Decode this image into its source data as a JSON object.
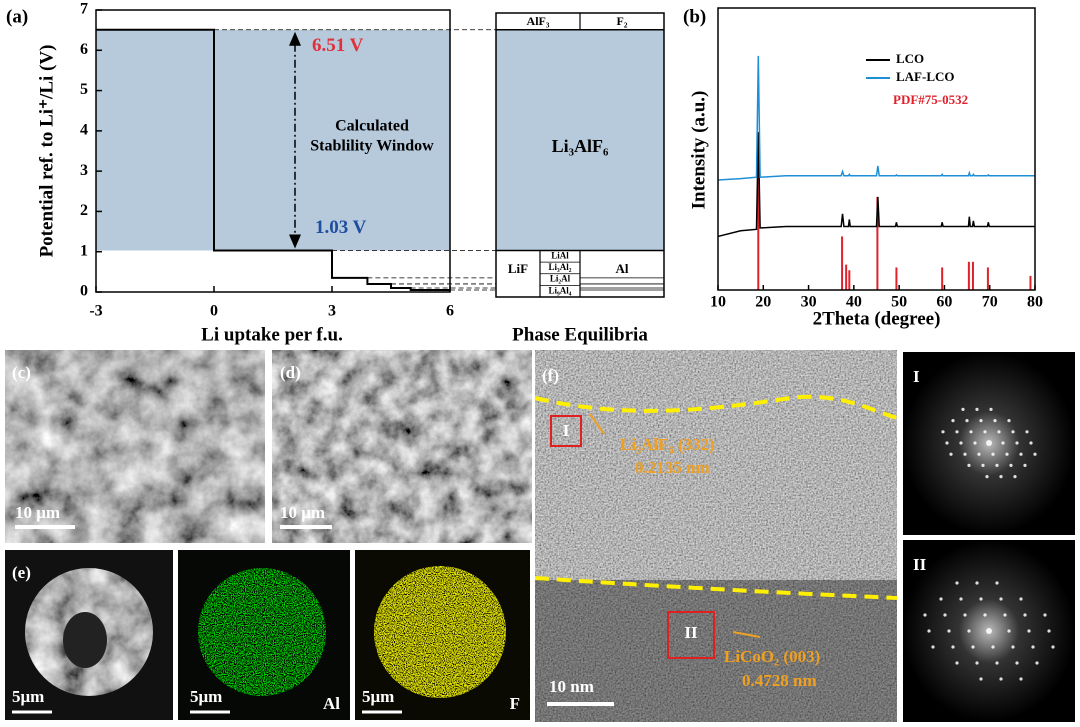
{
  "chart_data": [
    {
      "type": "line",
      "label": "(a)",
      "x_label": "Li uptake per f.u.",
      "y_label": "Potential ref. to Li⁺/Li (V)",
      "xlim": [
        -3,
        6
      ],
      "ylim": [
        0,
        7
      ],
      "xticks": [
        -3,
        0,
        3,
        6
      ],
      "yticks": [
        0,
        1,
        2,
        3,
        4,
        5,
        6,
        7
      ],
      "series": [
        {
          "color": "#000000",
          "x": [
            -3,
            0,
            0,
            3,
            3,
            3.9,
            3.9,
            4.5,
            4.5,
            5,
            5,
            6
          ],
          "values": [
            6.51,
            6.51,
            1.03,
            1.03,
            0.35,
            0.35,
            0.2,
            0.2,
            0.1,
            0.1,
            0.05,
            0.05
          ]
        }
      ],
      "window_color": "#b7cadc",
      "annotations": [
        {
          "text": "6.51 V",
          "color": "#e0303a"
        },
        {
          "text": "1.03 V",
          "color": "#1f4ea0"
        },
        {
          "lines": [
            "Calculated",
            "Stablility Window"
          ],
          "color": "#000000"
        }
      ]
    },
    {
      "type": "line",
      "label": "(b)",
      "x_label": "2Theta (degree)",
      "y_label": "Intensity (a.u.)",
      "xlim": [
        10,
        80
      ],
      "ylim": [
        0,
        100
      ],
      "xticks": [
        10,
        20,
        30,
        40,
        50,
        60,
        70,
        80
      ],
      "x": [
        10,
        15,
        18.5,
        18.9,
        19.3,
        25,
        37.2,
        37.5,
        37.8,
        38.8,
        39,
        39.2,
        45,
        45.3,
        45.6,
        49.2,
        49.4,
        49.6,
        59.3,
        59.5,
        59.7,
        65.3,
        65.5,
        65.7,
        66.2,
        66.4,
        66.6,
        69.5,
        69.7,
        69.9,
        80
      ],
      "series": [
        {
          "name": "LCO",
          "color": "#000000",
          "values": [
            19,
            21,
            21.5,
            56,
            22,
            22.5,
            22.5,
            27,
            22.5,
            22.5,
            25,
            22.5,
            22.5,
            33,
            22.5,
            22.5,
            24,
            22.5,
            22.5,
            24,
            22.5,
            22.5,
            26,
            22.5,
            22.5,
            24.5,
            22.5,
            22.5,
            24,
            22.5,
            22.5
          ]
        },
        {
          "name": "LAF-LCO",
          "color": "#1e8fd6",
          "values": [
            39,
            39.5,
            40,
            83,
            40,
            40.5,
            40.5,
            42,
            40.5,
            40.5,
            41,
            40.5,
            40.5,
            44,
            40.5,
            40.5,
            40.8,
            40.5,
            40.5,
            41,
            40.5,
            40.5,
            41.5,
            40.5,
            40.5,
            41,
            40.5,
            40.5,
            40.8,
            40.5,
            40.5
          ]
        }
      ],
      "sticks": {
        "name": "PDF#75-0532",
        "color": "#e0202a",
        "x": [
          18.9,
          37.4,
          38.3,
          39,
          45.2,
          49.4,
          59.5,
          65.4,
          66.3,
          69.6,
          79
        ],
        "values": [
          55,
          19,
          9,
          7,
          33,
          8,
          8,
          10,
          10,
          8,
          5
        ]
      },
      "legend": "upper right"
    }
  ],
  "phase_diagram": {
    "title": "Phase Equilibria",
    "top": [
      "AlF₃",
      "F₂"
    ],
    "middle": "Li₃AlF₆",
    "bottom": {
      "left": "LiF",
      "stack": [
        "LiAl",
        "Li₃Al₂",
        "Li₂Al",
        "Li₉Al₄"
      ],
      "right": "Al"
    }
  },
  "micrographs": {
    "c": {
      "label": "(c)",
      "scale": "10 μm"
    },
    "d": {
      "label": "(d)",
      "scale": "10 μm"
    },
    "e": {
      "label": "(e)",
      "scale": [
        "5μm",
        "5μm",
        "5μm"
      ],
      "elements": [
        "Al",
        "F"
      ]
    },
    "f": {
      "label": "(f)",
      "scale": "10 nm",
      "regions": [
        "I",
        "II"
      ],
      "annotations": [
        [
          "Li₃AlF₆ (332)",
          "0.2135 nm"
        ],
        [
          "LiCoO₂ (003)",
          "0.4728 nm"
        ]
      ]
    },
    "fft": [
      "I",
      "II"
    ]
  }
}
